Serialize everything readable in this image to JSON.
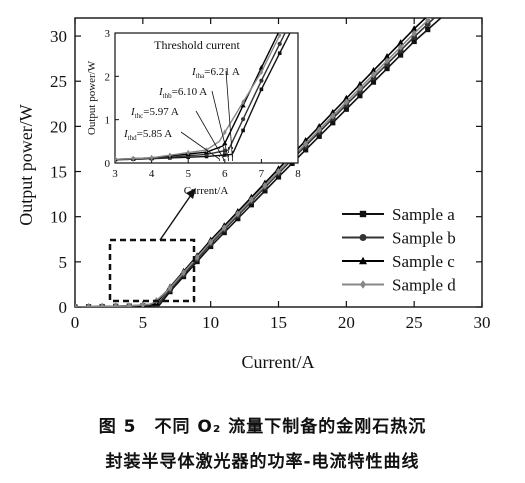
{
  "chart_data": [
    {
      "type": "line",
      "xlabel": "Current/A",
      "ylabel": "Output power/W",
      "xlim": [
        0,
        30
      ],
      "ylim": [
        0,
        32
      ],
      "xticks": [
        "0",
        "5",
        "10",
        "15",
        "20",
        "25",
        "30"
      ],
      "yticks": [
        "0",
        "5",
        "10",
        "15",
        "20",
        "25",
        "30"
      ],
      "grid": false,
      "legend_position": "bottom-right",
      "series": [
        {
          "name": "Sample a",
          "marker": "square",
          "color": "#111111",
          "x": [
            0,
            2,
            4,
            5.5,
            6.21,
            7,
            10,
            15,
            20,
            25,
            30
          ],
          "y": [
            0,
            0.05,
            0.1,
            0.15,
            0.2,
            1.7,
            6.7,
            14.4,
            21.9,
            29.4,
            36.0
          ]
        },
        {
          "name": "Sample b",
          "marker": "circle",
          "color": "#333333",
          "x": [
            0,
            2,
            4,
            5.5,
            6.1,
            7,
            10,
            15,
            20,
            25,
            30
          ],
          "y": [
            0,
            0.05,
            0.1,
            0.2,
            0.3,
            1.9,
            7.0,
            14.8,
            22.4,
            29.9,
            37.0
          ]
        },
        {
          "name": "Sample c",
          "marker": "triangle",
          "color": "#000000",
          "x": [
            0,
            2,
            4,
            5.5,
            5.97,
            7,
            10,
            15,
            20,
            25,
            30
          ],
          "y": [
            0,
            0.05,
            0.12,
            0.25,
            0.4,
            2.2,
            7.4,
            15.3,
            23.1,
            30.8,
            38.0
          ]
        },
        {
          "name": "Sample d",
          "marker": "diamond",
          "color": "#888888",
          "x": [
            0,
            2,
            4,
            5.5,
            5.85,
            7,
            10,
            15,
            20,
            25,
            30
          ],
          "y": [
            0,
            0.05,
            0.12,
            0.3,
            0.5,
            2.1,
            7.2,
            15.0,
            22.7,
            30.3,
            37.5
          ]
        }
      ]
    },
    {
      "type": "line",
      "title": "Threshold current",
      "xlabel": "Current/A",
      "ylabel": "Output power/W",
      "xlim": [
        3,
        8
      ],
      "ylim": [
        0,
        3
      ],
      "xticks": [
        "3",
        "4",
        "5",
        "6",
        "7",
        "8"
      ],
      "yticks": [
        "0",
        "1",
        "2",
        "3"
      ],
      "annotations": [
        {
          "italic": "I",
          "sub": "tha",
          "text": "=6.21 A",
          "x_value": 6.21
        },
        {
          "italic": "I",
          "sub": "thb",
          "text": "=6.10 A",
          "x_value": 6.1
        },
        {
          "italic": "I",
          "sub": "thc",
          "text": "=5.97 A",
          "x_value": 5.97
        },
        {
          "italic": "I",
          "sub": "thd",
          "text": "=5.85 A",
          "x_value": 5.85
        }
      ]
    }
  ],
  "caption": {
    "line1": "图 5　不同 O₂ 流量下制备的金刚石热沉",
    "line2": "封装半导体激光器的功率-电流特性曲线"
  }
}
